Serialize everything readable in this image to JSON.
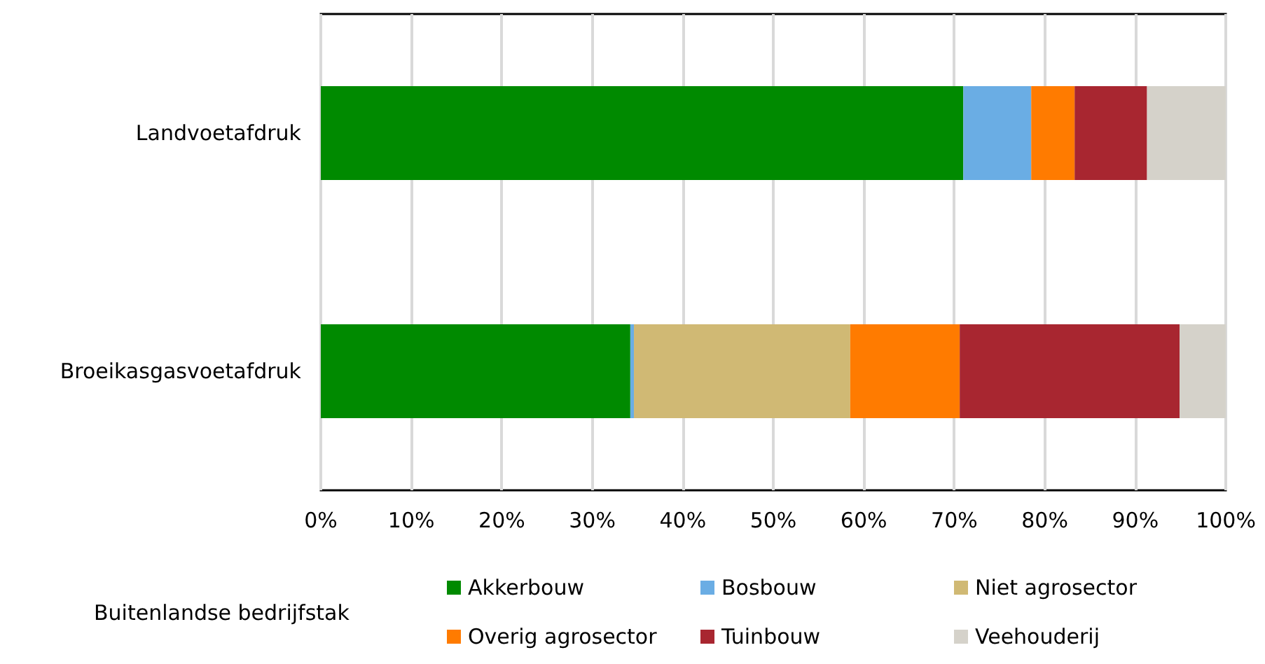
{
  "chart_data": {
    "type": "bar",
    "orientation": "horizontal",
    "stacked": true,
    "categories": [
      "Landvoetafdruk",
      "Broeikasgasvoetafdruk"
    ],
    "series": [
      {
        "name": "Akkerbouw",
        "color": "#008a00",
        "values": [
          71,
          34.2
        ]
      },
      {
        "name": "Bosbouw",
        "color": "#6aade4",
        "values": [
          7.5,
          0.4
        ]
      },
      {
        "name": "Niet agrosector",
        "color": "#d0b974",
        "values": [
          0,
          23.9
        ]
      },
      {
        "name": "Overig agrosector",
        "color": "#ff7b00",
        "values": [
          4.8,
          12.1
        ]
      },
      {
        "name": "Tuinbouw",
        "color": "#a82630",
        "values": [
          8,
          24.3
        ]
      },
      {
        "name": "Veehouderij",
        "color": "#d5d2ca",
        "values": [
          8.7,
          5.1
        ]
      }
    ],
    "xlim": [
      0,
      100
    ],
    "xticks": [
      {
        "value": 0,
        "label": "0%"
      },
      {
        "value": 10,
        "label": "10%"
      },
      {
        "value": 20,
        "label": "20%"
      },
      {
        "value": 30,
        "label": "30%"
      },
      {
        "value": 40,
        "label": "40%"
      },
      {
        "value": 50,
        "label": "50%"
      },
      {
        "value": 60,
        "label": "60%"
      },
      {
        "value": 70,
        "label": "70%"
      },
      {
        "value": 80,
        "label": "80%"
      },
      {
        "value": 90,
        "label": "90%"
      },
      {
        "value": 100,
        "label": "100%"
      }
    ],
    "grid": "x",
    "legend": "bottom",
    "legend_title": "Buitenlandse bedrijfstak"
  }
}
